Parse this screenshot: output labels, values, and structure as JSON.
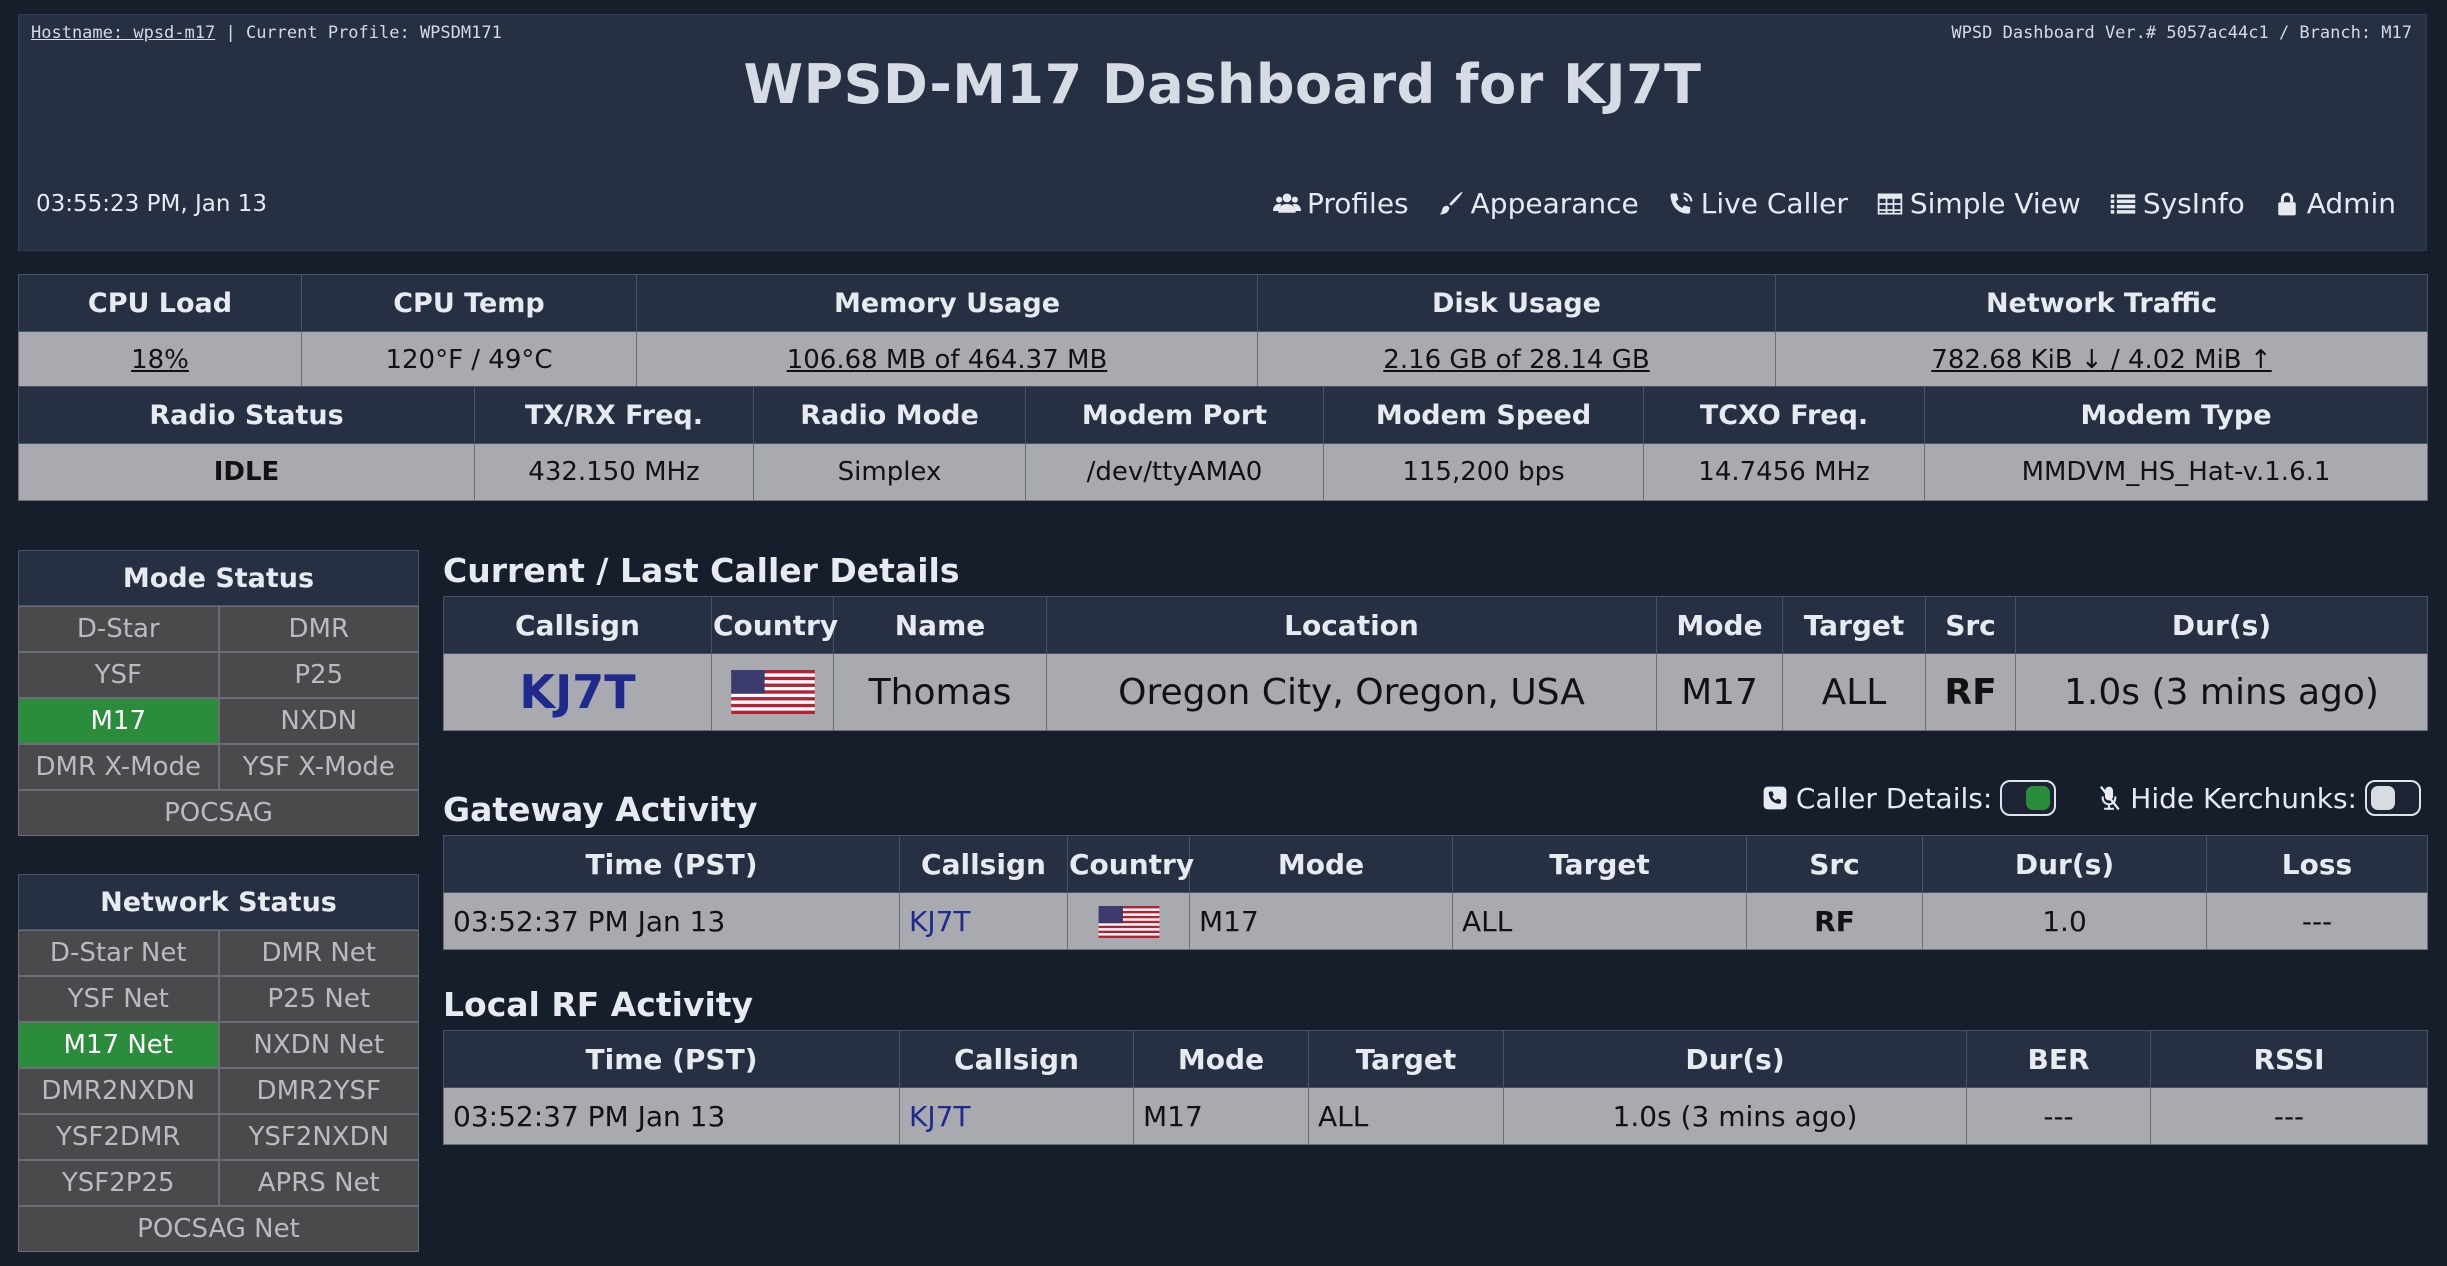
{
  "header": {
    "hostname_label": "Hostname: wpsd-m17",
    "profile_label": "| Current Profile: WPSDM171",
    "version": "WPSD Dashboard Ver.# 5057ac44c1 / Branch: M17",
    "title": "WPSD-M17 Dashboard for KJ7T",
    "clock": "03:55:23 PM, Jan 13",
    "nav": [
      {
        "label": "Profiles",
        "icon": "users-icon"
      },
      {
        "label": "Appearance",
        "icon": "paintbrush-icon"
      },
      {
        "label": "Live Caller",
        "icon": "phone-signal-icon"
      },
      {
        "label": "Simple View",
        "icon": "table-icon"
      },
      {
        "label": "SysInfo",
        "icon": "list-icon"
      },
      {
        "label": "Admin",
        "icon": "lock-icon"
      }
    ]
  },
  "system": {
    "headers": [
      "CPU Load",
      "CPU Temp",
      "Memory Usage",
      "Disk Usage",
      "Network Traffic"
    ],
    "values": [
      "18%",
      "120°F / 49°C",
      "106.68 MB of 464.37 MB",
      "2.16 GB of 28.14 GB",
      "782.68 KiB ↓ / 4.02 MiB ↑"
    ]
  },
  "radio": {
    "headers": [
      "Radio Status",
      "TX/RX Freq.",
      "Radio Mode",
      "Modem Port",
      "Modem Speed",
      "TCXO Freq.",
      "Modem Type"
    ],
    "values": [
      "IDLE",
      "432.150 MHz",
      "Simplex",
      "/dev/ttyAMA0",
      "115,200 bps",
      "14.7456 MHz",
      "MMDVM_HS_Hat-v.1.6.1"
    ]
  },
  "mode_status": {
    "title": "Mode Status",
    "items": [
      "D-Star",
      "DMR",
      "YSF",
      "P25",
      "M17",
      "NXDN",
      "DMR X-Mode",
      "YSF X-Mode",
      "POCSAG"
    ],
    "active": "M17"
  },
  "network_status": {
    "title": "Network Status",
    "items": [
      "D-Star Net",
      "DMR Net",
      "YSF Net",
      "P25 Net",
      "M17 Net",
      "NXDN Net",
      "DMR2NXDN",
      "DMR2YSF",
      "YSF2DMR",
      "YSF2NXDN",
      "YSF2P25",
      "APRS Net",
      "POCSAG Net"
    ],
    "active": "M17 Net"
  },
  "caller": {
    "title": "Current / Last Caller Details",
    "headers": [
      "Callsign",
      "Country",
      "Name",
      "Location",
      "Mode",
      "Target",
      "Src",
      "Dur(s)"
    ],
    "callsign": "KJ7T",
    "name": "Thomas",
    "location": "Oregon City, Oregon, USA",
    "mode": "M17",
    "target": "ALL",
    "src": "RF",
    "duration": "1.0s (3 mins ago)"
  },
  "toggles": {
    "caller_details_label": "Caller Details:",
    "hide_kerchunks_label": "Hide Kerchunks:"
  },
  "gateway": {
    "title": "Gateway Activity",
    "headers": [
      "Time (PST)",
      "Callsign",
      "Country",
      "Mode",
      "Target",
      "Src",
      "Dur(s)",
      "Loss"
    ],
    "row": {
      "time": "03:52:37 PM Jan 13",
      "callsign": "KJ7T",
      "mode": "M17",
      "target": "ALL",
      "src": "RF",
      "duration": "1.0",
      "loss": "---"
    }
  },
  "local_rf": {
    "title": "Local RF Activity",
    "headers": [
      "Time (PST)",
      "Callsign",
      "Mode",
      "Target",
      "Dur(s)",
      "BER",
      "RSSI"
    ],
    "row": {
      "time": "03:52:37 PM Jan 13",
      "callsign": "KJ7T",
      "mode": "M17",
      "target": "ALL",
      "duration": "1.0s (3 mins ago)",
      "ber": "---",
      "rssi": "---"
    }
  },
  "colors": {
    "background": "#161e2b",
    "panel": "#273043",
    "cell": "#a9aab0",
    "active_green": "#2b8c3b",
    "callsign_blue": "#1f2a8c",
    "rf_red": "#a01818"
  }
}
